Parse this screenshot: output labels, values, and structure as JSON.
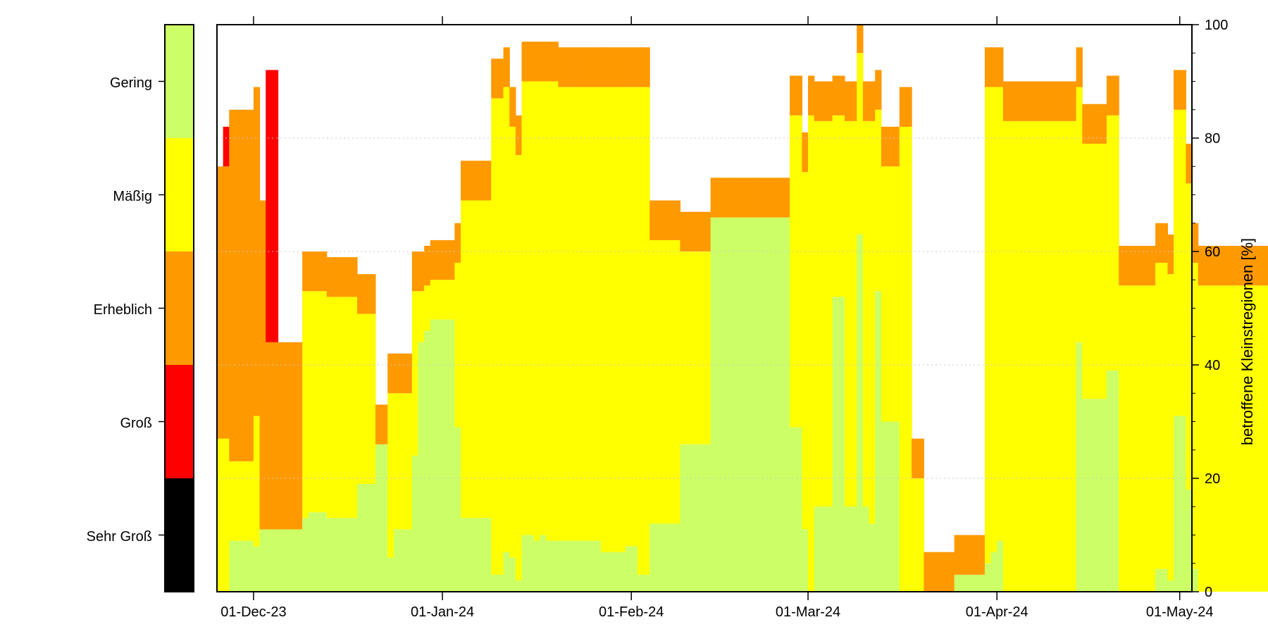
{
  "chart_data": {
    "type": "area",
    "title": "",
    "xlabel": "",
    "ylabel": "betroffene Kleinstregionen [%]",
    "ylim": [
      0,
      100
    ],
    "y_ticks": [
      0,
      20,
      40,
      60,
      80,
      100
    ],
    "x_range": [
      "2023-11-25",
      "2024-05-03"
    ],
    "x_tick_labels": [
      "01-Dec-23",
      "01-Jan-24",
      "01-Feb-24",
      "01-Mar-24",
      "01-Apr-24",
      "01-May-24"
    ],
    "x_tick_dates": [
      "2023-12-01",
      "2024-01-01",
      "2024-02-01",
      "2024-03-01",
      "2024-04-01",
      "2024-05-01"
    ],
    "grid": "dotted horizontal",
    "colors": {
      "Gering": "#ccff66",
      "Mäßig": "#ffff00",
      "Erheblich": "#ff9900",
      "Groß": "#ff0000",
      "Sehr Groß": "#000000"
    },
    "legend": {
      "placement": "left colorbar",
      "levels": [
        "Gering",
        "Mäßig",
        "Erheblich",
        "Groß",
        "Sehr Groß"
      ]
    },
    "start_date": "2023-11-25",
    "series_order": [
      "Gering",
      "Mäßig",
      "Erheblich",
      "Groß"
    ],
    "series": [
      {
        "name": "Gering",
        "values": [
          0,
          0,
          9,
          9,
          9,
          9,
          8,
          11,
          11,
          11,
          11,
          11,
          11,
          11,
          13,
          14,
          14,
          14,
          13,
          13,
          13,
          13,
          13,
          19,
          19,
          19,
          26,
          26,
          6,
          11,
          11,
          11,
          24,
          44,
          46,
          48,
          48,
          48,
          48,
          29,
          13,
          13,
          13,
          13,
          13,
          3,
          3,
          7,
          6,
          2,
          10,
          10,
          9,
          10,
          9,
          9,
          9,
          9,
          9,
          9,
          9,
          9,
          9,
          7,
          7,
          7,
          7,
          8,
          8,
          3,
          3,
          12,
          12,
          12,
          12,
          12,
          26,
          26,
          26,
          26,
          26,
          66,
          66,
          66,
          66,
          66,
          66,
          66,
          66,
          66,
          66,
          66,
          66,
          66,
          29,
          29,
          11,
          0,
          15,
          15,
          15,
          52,
          52,
          15,
          15,
          63,
          15,
          12,
          53,
          30,
          30,
          30,
          0,
          0,
          0,
          0,
          0,
          0,
          0,
          0,
          0,
          3,
          3,
          3,
          3,
          3,
          5,
          7,
          9,
          0,
          0,
          0,
          0,
          0,
          0,
          0,
          0,
          0,
          0,
          0,
          0,
          44,
          34,
          34,
          34,
          34,
          39,
          39,
          0,
          0,
          0,
          0,
          0,
          0,
          4,
          4,
          2,
          31,
          31,
          18,
          4,
          0,
          0,
          0,
          0,
          0,
          0,
          0,
          0,
          0,
          0,
          0,
          0,
          0,
          0,
          0,
          0,
          0,
          0,
          0,
          0,
          0,
          0,
          0,
          0,
          0,
          0,
          0,
          3,
          2,
          14,
          14,
          14,
          14,
          14,
          14,
          14,
          14,
          14,
          14,
          14,
          20,
          18,
          62,
          58,
          56,
          56,
          53,
          36,
          36,
          0,
          0,
          0,
          0,
          0,
          0,
          0,
          0,
          15,
          6,
          10,
          11,
          0,
          0,
          0,
          0
        ]
      },
      {
        "name": "Mäßig",
        "values": [
          27,
          27,
          14,
          14,
          14,
          14,
          23,
          0,
          0,
          0,
          0,
          0,
          0,
          0,
          40,
          39,
          39,
          39,
          39,
          39,
          39,
          39,
          39,
          30,
          30,
          30,
          0,
          0,
          29,
          24,
          24,
          24,
          29,
          9,
          8,
          7,
          7,
          7,
          7,
          29,
          56,
          56,
          56,
          56,
          56,
          84,
          84,
          82,
          76,
          75,
          80,
          80,
          81,
          80,
          81,
          81,
          80,
          80,
          80,
          80,
          80,
          80,
          80,
          82,
          82,
          82,
          82,
          81,
          81,
          86,
          86,
          50,
          50,
          50,
          50,
          50,
          34,
          34,
          34,
          34,
          34,
          0,
          0,
          0,
          0,
          0,
          0,
          0,
          0,
          0,
          0,
          0,
          0,
          0,
          55,
          55,
          63,
          84,
          68,
          68,
          68,
          32,
          32,
          68,
          68,
          32,
          68,
          71,
          32,
          45,
          45,
          45,
          82,
          82,
          20,
          20,
          0,
          0,
          0,
          0,
          0,
          0,
          0,
          0,
          0,
          0,
          84,
          82,
          80,
          83,
          83,
          83,
          83,
          83,
          83,
          83,
          83,
          83,
          83,
          83,
          83,
          45,
          45,
          45,
          45,
          45,
          45,
          45,
          54,
          54,
          54,
          54,
          54,
          54,
          54,
          54,
          54,
          54,
          54,
          54,
          54,
          54,
          54,
          54,
          54,
          54,
          54,
          54,
          54,
          54,
          54,
          54,
          54,
          54,
          54,
          54,
          54,
          54,
          54,
          54,
          54,
          54,
          54,
          54,
          54,
          54,
          54,
          54,
          54,
          54,
          54,
          54,
          54,
          54,
          54,
          54,
          54,
          54,
          54,
          54,
          54,
          54,
          54,
          54,
          54,
          54,
          54,
          54,
          54,
          54,
          54,
          54,
          54,
          54,
          54,
          54,
          54,
          54,
          54,
          54,
          54,
          54,
          54,
          54,
          54,
          54,
          54,
          54
        ]
      },
      {
        "name": "Erheblich",
        "values": [
          48,
          48,
          62,
          62,
          62,
          62,
          58,
          58,
          33,
          33,
          33,
          33,
          33,
          33,
          7,
          7,
          7,
          7,
          7,
          7,
          7,
          7,
          7,
          7,
          7,
          7,
          7,
          7,
          7,
          7,
          7,
          7,
          7,
          7,
          7,
          7,
          7,
          7,
          7,
          7,
          7,
          7,
          7,
          7,
          7,
          7,
          7,
          7,
          7,
          7,
          7,
          7,
          7,
          7,
          7,
          7,
          7,
          7,
          7,
          7,
          7,
          7,
          7,
          7,
          7,
          7,
          7,
          7,
          7,
          7,
          7,
          7,
          7,
          7,
          7,
          7,
          7,
          7,
          7,
          7,
          7,
          7,
          7,
          7,
          7,
          7,
          7,
          7,
          7,
          7,
          7,
          7,
          7,
          7,
          7,
          7,
          7,
          7,
          7,
          7,
          7,
          7,
          7,
          7,
          7,
          7,
          7,
          7,
          7,
          7,
          7,
          7,
          7,
          7,
          7,
          7,
          7,
          7,
          7,
          7,
          7,
          7,
          7,
          7,
          7,
          7,
          7,
          7,
          7,
          7,
          7,
          7,
          7,
          7,
          7,
          7,
          7,
          7,
          7,
          7,
          7,
          7,
          7,
          7,
          7,
          7,
          7,
          7,
          7,
          7,
          7,
          7,
          7,
          7,
          7,
          7,
          7,
          7,
          7,
          7,
          7,
          7,
          7,
          7,
          7,
          7,
          7,
          7,
          7,
          7,
          7,
          7,
          7,
          7,
          7,
          7,
          7,
          7,
          7,
          7,
          7,
          7,
          7,
          7,
          7,
          7,
          7,
          7,
          7,
          7,
          7,
          7,
          7,
          7,
          7,
          7,
          7,
          7,
          7,
          7,
          7,
          7,
          7,
          7,
          7,
          7,
          7,
          7,
          7,
          7,
          7,
          7,
          7,
          7,
          7,
          7,
          7,
          7,
          7,
          7,
          7,
          7,
          7,
          7,
          7,
          7,
          7,
          7,
          7,
          7,
          7,
          7,
          7,
          7,
          7,
          7
        ]
      },
      {
        "name": "Groß",
        "values": [
          0,
          7,
          0,
          0,
          0,
          0,
          0,
          0,
          48,
          48,
          0,
          0,
          0,
          0,
          0,
          0,
          0,
          0,
          0,
          0,
          0,
          0,
          0,
          0,
          0,
          0,
          0,
          0,
          0,
          0,
          0,
          0,
          0,
          0,
          0,
          0,
          0,
          0,
          0,
          0,
          0,
          0,
          0,
          0,
          0,
          0,
          0,
          0,
          0,
          0,
          0,
          0,
          0,
          0,
          0,
          0,
          0,
          0,
          0,
          0,
          0,
          0,
          0,
          0,
          0,
          0,
          0,
          0,
          0,
          0,
          0,
          0,
          0,
          0,
          0,
          0,
          0,
          0,
          0,
          0,
          0,
          0,
          0,
          0,
          0,
          0,
          0,
          0,
          0,
          0,
          0,
          0,
          0,
          0,
          0,
          0,
          0,
          0,
          0,
          0,
          0,
          0,
          0,
          0,
          0,
          0,
          0,
          0,
          0,
          0,
          0,
          0,
          0,
          0,
          0,
          0,
          0,
          0,
          0,
          0,
          0,
          0,
          0,
          0,
          0,
          0,
          0,
          0,
          0,
          0,
          0,
          0,
          0,
          0,
          0,
          0,
          0,
          0,
          0,
          0,
          0,
          0,
          0,
          0,
          0,
          0,
          0,
          0,
          0,
          0,
          0,
          0,
          0,
          0,
          0,
          0,
          0,
          0,
          0,
          0,
          0,
          0,
          0,
          0,
          0,
          0,
          0,
          0,
          0,
          0,
          0,
          0,
          0,
          0,
          0,
          0,
          0,
          0,
          0,
          0,
          0,
          0,
          0,
          0,
          0,
          0,
          0,
          0,
          0,
          0,
          0,
          0,
          0,
          0,
          0,
          0,
          0,
          0,
          0,
          0,
          0,
          0,
          0,
          0,
          0,
          0,
          0,
          0,
          0,
          0,
          0,
          0,
          0,
          0,
          0,
          0,
          0,
          0,
          0,
          0,
          0,
          0,
          0,
          0,
          0,
          0,
          0,
          0,
          0,
          0,
          0,
          0,
          0,
          0,
          0,
          0
        ]
      }
    ]
  }
}
